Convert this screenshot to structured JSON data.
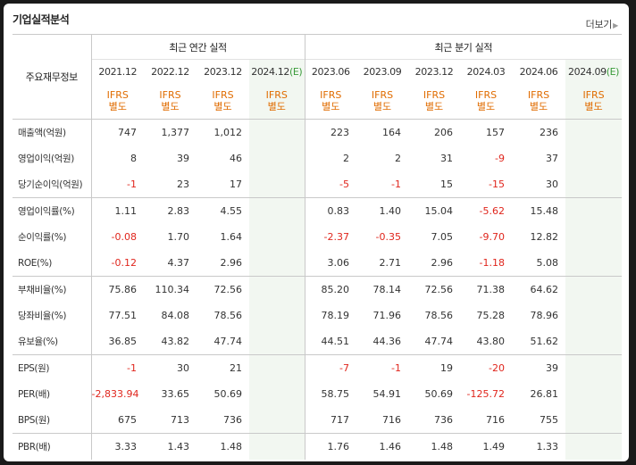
{
  "section_title": "기업실적분석",
  "more_label": "더보기",
  "corner_label": "주요재무정보",
  "groups": {
    "annual": "최근 연간 실적",
    "quarterly": "최근 분기 실적"
  },
  "periods": [
    {
      "label": "2021.12",
      "est": ""
    },
    {
      "label": "2022.12",
      "est": ""
    },
    {
      "label": "2023.12",
      "est": ""
    },
    {
      "label": "2024.12",
      "est": "(E)"
    },
    {
      "label": "2023.06",
      "est": ""
    },
    {
      "label": "2023.09",
      "est": ""
    },
    {
      "label": "2023.12",
      "est": ""
    },
    {
      "label": "2024.03",
      "est": ""
    },
    {
      "label": "2024.06",
      "est": ""
    },
    {
      "label": "2024.09",
      "est": "(E)"
    }
  ],
  "standard": {
    "line1": "IFRS",
    "line2": "별도"
  },
  "rows": [
    {
      "label": "매출액(억원)",
      "values": [
        "747",
        "1,377",
        "1,012",
        "",
        "223",
        "164",
        "206",
        "157",
        "236",
        ""
      ]
    },
    {
      "label": "영업이익(억원)",
      "values": [
        "8",
        "39",
        "46",
        "",
        "2",
        "2",
        "31",
        "-9",
        "37",
        ""
      ]
    },
    {
      "label": "당기순이익(억원)",
      "values": [
        "-1",
        "23",
        "17",
        "",
        "-5",
        "-1",
        "15",
        "-15",
        "30",
        ""
      ]
    },
    {
      "label": "영업이익률(%)",
      "values": [
        "1.11",
        "2.83",
        "4.55",
        "",
        "0.83",
        "1.40",
        "15.04",
        "-5.62",
        "15.48",
        ""
      ]
    },
    {
      "label": "순이익률(%)",
      "values": [
        "-0.08",
        "1.70",
        "1.64",
        "",
        "-2.37",
        "-0.35",
        "7.05",
        "-9.70",
        "12.82",
        ""
      ]
    },
    {
      "label": "ROE(%)",
      "values": [
        "-0.12",
        "4.37",
        "2.96",
        "",
        "3.06",
        "2.71",
        "2.96",
        "-1.18",
        "5.08",
        ""
      ]
    },
    {
      "label": "부채비율(%)",
      "values": [
        "75.86",
        "110.34",
        "72.56",
        "",
        "85.20",
        "78.14",
        "72.56",
        "71.38",
        "64.62",
        ""
      ]
    },
    {
      "label": "당좌비율(%)",
      "values": [
        "77.51",
        "84.08",
        "78.56",
        "",
        "78.19",
        "71.96",
        "78.56",
        "75.28",
        "78.96",
        ""
      ]
    },
    {
      "label": "유보율(%)",
      "values": [
        "36.85",
        "43.82",
        "47.74",
        "",
        "44.51",
        "44.36",
        "47.74",
        "43.80",
        "51.62",
        ""
      ]
    },
    {
      "label": "EPS(원)",
      "values": [
        "-1",
        "30",
        "21",
        "",
        "-7",
        "-1",
        "19",
        "-20",
        "39",
        ""
      ]
    },
    {
      "label": "PER(배)",
      "values": [
        "-2,833.94",
        "33.65",
        "50.69",
        "",
        "58.75",
        "54.91",
        "50.69",
        "-125.72",
        "26.81",
        ""
      ]
    },
    {
      "label": "BPS(원)",
      "values": [
        "675",
        "713",
        "736",
        "",
        "717",
        "716",
        "736",
        "716",
        "755",
        ""
      ]
    },
    {
      "label": "PBR(배)",
      "values": [
        "3.33",
        "1.43",
        "1.48",
        "",
        "1.76",
        "1.46",
        "1.48",
        "1.49",
        "1.33",
        ""
      ]
    }
  ],
  "colors": {
    "negative": "#e0261d",
    "ifrs": "#e06c00",
    "estimate_bg": "#f2f7f1"
  }
}
